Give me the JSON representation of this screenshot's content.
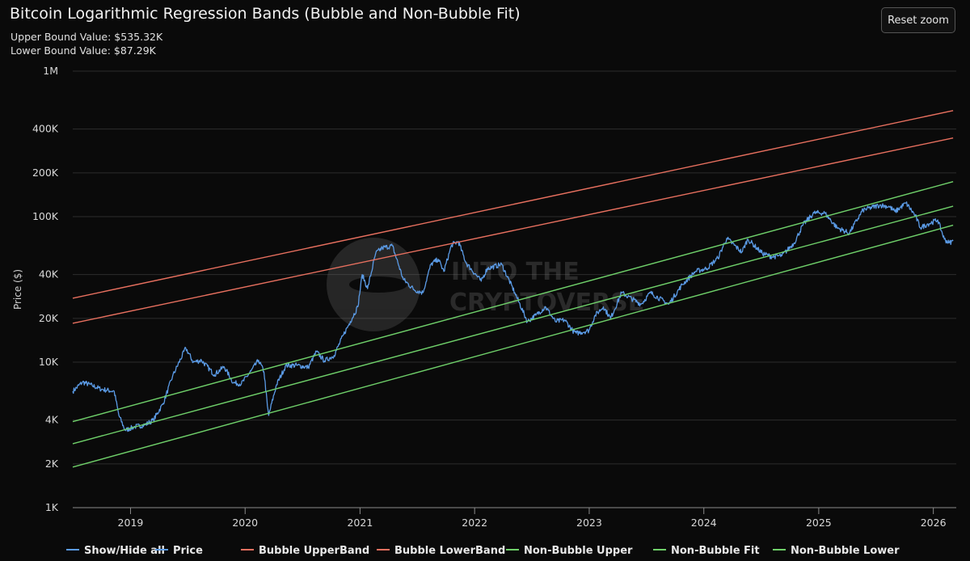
{
  "header": {
    "title": "Bitcoin Logarithmic Regression Bands (Bubble and Non-Bubble Fit)",
    "upper_bound": "Upper Bound Value: $535.32K",
    "lower_bound": "Lower Bound Value: $87.29K",
    "reset_label": "Reset zoom"
  },
  "watermark": {
    "line1": "INTO THE",
    "line2": "CRYPTOVERSE"
  },
  "legend": {
    "items": [
      {
        "label": "Show/Hide all",
        "color": "#5b9be6"
      },
      {
        "label": "Price",
        "color": "#5b9be6"
      },
      {
        "label": "Bubble UpperBand",
        "color": "#e8705f"
      },
      {
        "label": "Bubble LowerBand",
        "color": "#e8705f"
      },
      {
        "label": "Non-Bubble Upper",
        "color": "#6fd06a"
      },
      {
        "label": "Non-Bubble Fit",
        "color": "#6fd06a"
      },
      {
        "label": "Non-Bubble Lower",
        "color": "#6fd06a"
      }
    ]
  },
  "chart_data": {
    "type": "line",
    "title": "Bitcoin Logarithmic Regression Bands (Bubble and Non-Bubble Fit)",
    "ylabel": "Price ($)",
    "xlabel": "",
    "y_scale": "log",
    "ylim": [
      1000,
      1000000
    ],
    "xlim": [
      "2018-07-01",
      "2026-03-15"
    ],
    "y_ticks": [
      {
        "value": 1000,
        "label": "1K"
      },
      {
        "value": 2000,
        "label": "2K"
      },
      {
        "value": 4000,
        "label": "4K"
      },
      {
        "value": 10000,
        "label": "10K"
      },
      {
        "value": 20000,
        "label": "20K"
      },
      {
        "value": 40000,
        "label": "40K"
      },
      {
        "value": 100000,
        "label": "100K"
      },
      {
        "value": 200000,
        "label": "200K"
      },
      {
        "value": 400000,
        "label": "400K"
      },
      {
        "value": 1000000,
        "label": "1M"
      }
    ],
    "x_ticks": [
      {
        "value": "2019-01-01",
        "label": "2019"
      },
      {
        "value": "2020-01-01",
        "label": "2020"
      },
      {
        "value": "2021-01-01",
        "label": "2021"
      },
      {
        "value": "2022-01-01",
        "label": "2022"
      },
      {
        "value": "2023-01-01",
        "label": "2023"
      },
      {
        "value": "2024-01-01",
        "label": "2024"
      },
      {
        "value": "2025-01-01",
        "label": "2025"
      },
      {
        "value": "2026-01-01",
        "label": "2026"
      }
    ],
    "legend_position": "bottom",
    "grid": true,
    "series": [
      {
        "name": "Price",
        "color": "#5b9be6",
        "x": [
          "2018-07-01",
          "2018-08-01",
          "2018-09-01",
          "2018-10-01",
          "2018-11-10",
          "2018-11-25",
          "2018-12-15",
          "2019-01-15",
          "2019-02-15",
          "2019-03-15",
          "2019-04-15",
          "2019-05-15",
          "2019-06-26",
          "2019-07-20",
          "2019-08-15",
          "2019-09-25",
          "2019-10-26",
          "2019-11-25",
          "2019-12-20",
          "2020-01-20",
          "2020-02-13",
          "2020-03-01",
          "2020-03-12",
          "2020-03-16",
          "2020-04-10",
          "2020-05-10",
          "2020-06-15",
          "2020-07-20",
          "2020-08-15",
          "2020-09-10",
          "2020-10-10",
          "2020-11-10",
          "2020-12-01",
          "2020-12-25",
          "2021-01-08",
          "2021-01-25",
          "2021-02-20",
          "2021-03-13",
          "2021-04-14",
          "2021-05-19",
          "2021-06-22",
          "2021-07-20",
          "2021-08-15",
          "2021-09-07",
          "2021-09-25",
          "2021-10-20",
          "2021-11-10",
          "2021-12-05",
          "2022-01-22",
          "2022-02-10",
          "2022-03-28",
          "2022-05-09",
          "2022-06-18",
          "2022-07-15",
          "2022-08-15",
          "2022-09-15",
          "2022-10-15",
          "2022-11-09",
          "2022-11-21",
          "2022-12-31",
          "2023-01-20",
          "2023-02-15",
          "2023-03-10",
          "2023-04-14",
          "2023-06-15",
          "2023-07-15",
          "2023-09-11",
          "2023-10-24",
          "2023-12-05",
          "2024-01-10",
          "2024-02-15",
          "2024-03-14",
          "2024-05-01",
          "2024-05-20",
          "2024-07-05",
          "2024-08-05",
          "2024-09-06",
          "2024-10-15",
          "2024-11-12",
          "2024-12-17",
          "2025-01-20",
          "2025-02-28",
          "2025-04-08",
          "2025-05-22",
          "2025-07-14",
          "2025-08-14",
          "2025-09-01",
          "2025-10-06",
          "2025-11-04",
          "2025-11-21",
          "2025-12-15",
          "2026-01-15",
          "2026-02-05",
          "2026-02-20",
          "2026-03-05"
        ],
        "y": [
          6300,
          7300,
          6900,
          6500,
          6300,
          4300,
          3400,
          3600,
          3700,
          4000,
          5200,
          8000,
          12500,
          10000,
          10300,
          8200,
          9300,
          7200,
          7100,
          8700,
          10300,
          8600,
          5000,
          4300,
          7000,
          9500,
          9500,
          9200,
          11800,
          10200,
          11100,
          15500,
          19000,
          24000,
          40000,
          32000,
          56000,
          61000,
          63000,
          37000,
          31500,
          30000,
          47000,
          51000,
          42000,
          64000,
          67500,
          48000,
          36000,
          44000,
          47000,
          30000,
          19000,
          21000,
          24000,
          19000,
          19500,
          16500,
          15800,
          16500,
          21000,
          24000,
          20000,
          30000,
          25000,
          30000,
          25000,
          34000,
          42000,
          44000,
          52000,
          71000,
          57000,
          70000,
          56000,
          53000,
          54000,
          66000,
          88000,
          106000,
          106000,
          84000,
          77000,
          111000,
          120000,
          117000,
          108000,
          124000,
          102000,
          84000,
          89000,
          95000,
          70000,
          66000,
          68000
        ]
      },
      {
        "name": "Bubble UpperBand",
        "color": "#e8705f",
        "x": [
          "2018-07-01",
          "2026-03-05"
        ],
        "y": [
          27500,
          535320
        ]
      },
      {
        "name": "Bubble LowerBand",
        "color": "#e8705f",
        "x": [
          "2018-07-01",
          "2026-03-05"
        ],
        "y": [
          18500,
          347000
        ]
      },
      {
        "name": "Non-Bubble Upper",
        "color": "#6fd06a",
        "x": [
          "2018-07-01",
          "2026-03-05"
        ],
        "y": [
          3900,
          174000
        ]
      },
      {
        "name": "Non-Bubble Fit",
        "color": "#6fd06a",
        "x": [
          "2018-07-01",
          "2026-03-05"
        ],
        "y": [
          2750,
          118000
        ]
      },
      {
        "name": "Non-Bubble Lower",
        "color": "#6fd06a",
        "x": [
          "2018-07-01",
          "2026-03-05"
        ],
        "y": [
          1900,
          87290
        ]
      }
    ]
  }
}
